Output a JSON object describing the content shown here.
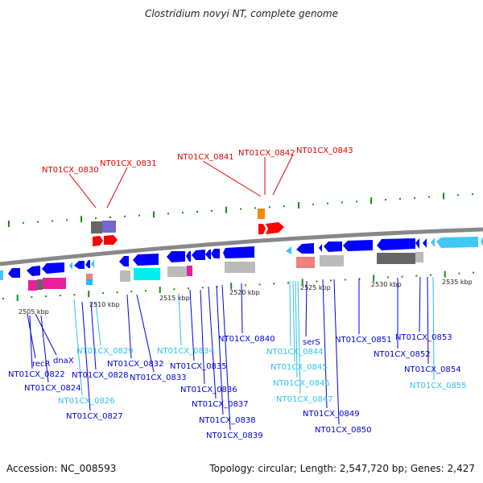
{
  "title": "Clostridium novyi NT, complete genome",
  "footer": {
    "accession": "Accession: NC_008593",
    "topology": "Topology: circular; Length: 2,547,720 bp; Genes: 2,427"
  },
  "colors": {
    "red": "#e00000",
    "blue": "#0000dd",
    "cyan": "#30c0f0",
    "tick": "#1a8a1a",
    "backbone": "#777777"
  },
  "kbp_labels": [
    "2505 kbp",
    "2510 kbp",
    "2515 kbp",
    "2520 kbp",
    "2525 kbp",
    "2530 kbp",
    "2535 kbp"
  ],
  "top_labels": [
    "NT01CX_0830",
    "NT01CX_0831",
    "NT01CX_0841",
    "NT01CX_0842",
    "NT01CX_0843"
  ],
  "bottom_labels": [
    "recR",
    "dnaX",
    "NT01CX_0822",
    "NT01CX_0824",
    "NT01CX_0826",
    "NT01CX_0827",
    "NT01CX_0828",
    "NT01CX_0829",
    "NT01CX_0832",
    "NT01CX_0833",
    "NT01CX_0834",
    "NT01CX_0835",
    "NT01CX_0836",
    "NT01CX_0837",
    "NT01CX_0838",
    "NT01CX_0839",
    "NT01CX_0840",
    "NT01CX_0844",
    "serS",
    "NT01CX_0845",
    "NT01CX_0846",
    "NT01CX_0847",
    "NT01CX_0849",
    "NT01CX_0850",
    "NT01CX_0851",
    "NT01CX_0852",
    "NT01CX_0853",
    "NT01CX_0854",
    "NT01CX_0855"
  ]
}
